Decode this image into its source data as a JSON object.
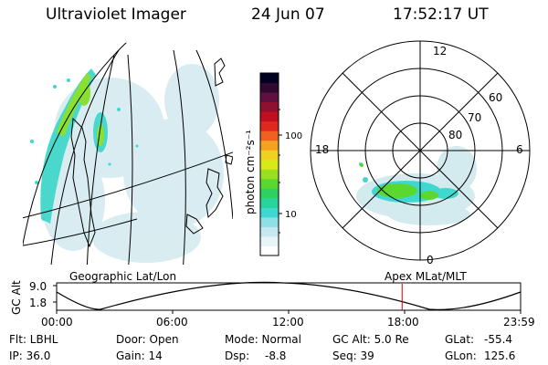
{
  "header": {
    "instrument": "Ultraviolet Imager",
    "date": "24 Jun 07",
    "time": "17:52:17 UT"
  },
  "colorbar": {
    "unit_label": "photon cm⁻²s⁻¹",
    "ticks": [
      "100",
      "10"
    ],
    "colors": [
      "#ffffff",
      "#e8f4f8",
      "#c6e8ee",
      "#8fe0e6",
      "#3fd8d0",
      "#28d49a",
      "#30d060",
      "#5ad830",
      "#9ae020",
      "#d8e818",
      "#f0d020",
      "#f4a020",
      "#f06020",
      "#e02820",
      "#c01020",
      "#901030",
      "#601040",
      "#300830",
      "#000020"
    ]
  },
  "polar_plot": {
    "mlt_labels": [
      "12",
      "18",
      "6",
      "0"
    ],
    "mlat_labels": [
      "60",
      "70",
      "80"
    ]
  },
  "orbit_panel": {
    "ylabel": "GC Alt",
    "yticks": [
      "9.0",
      "1.8"
    ],
    "left_title": "Geographic Lat/Lon",
    "right_title": "Apex MLat/MLT",
    "xticks": [
      "00:00",
      "06:00",
      "12:00",
      "18:00",
      "23:59"
    ],
    "current_time_hours": 17.87,
    "marker_color": "#d00000"
  },
  "footer": {
    "flt": "Flt: LBHL",
    "ip": "IP: 36.0",
    "door": "Door: Open",
    "gain": "Gain: 14",
    "mode": "Mode: Normal",
    "dsp_label": "Dsp:",
    "dsp_value": "-8.8",
    "gcalt": "GC Alt: 5.0 Re",
    "seq": "Seq: 39",
    "glat_label": "GLat:",
    "glat_value": "-55.4",
    "glon_label": "GLon:",
    "glon_value": "125.6"
  }
}
